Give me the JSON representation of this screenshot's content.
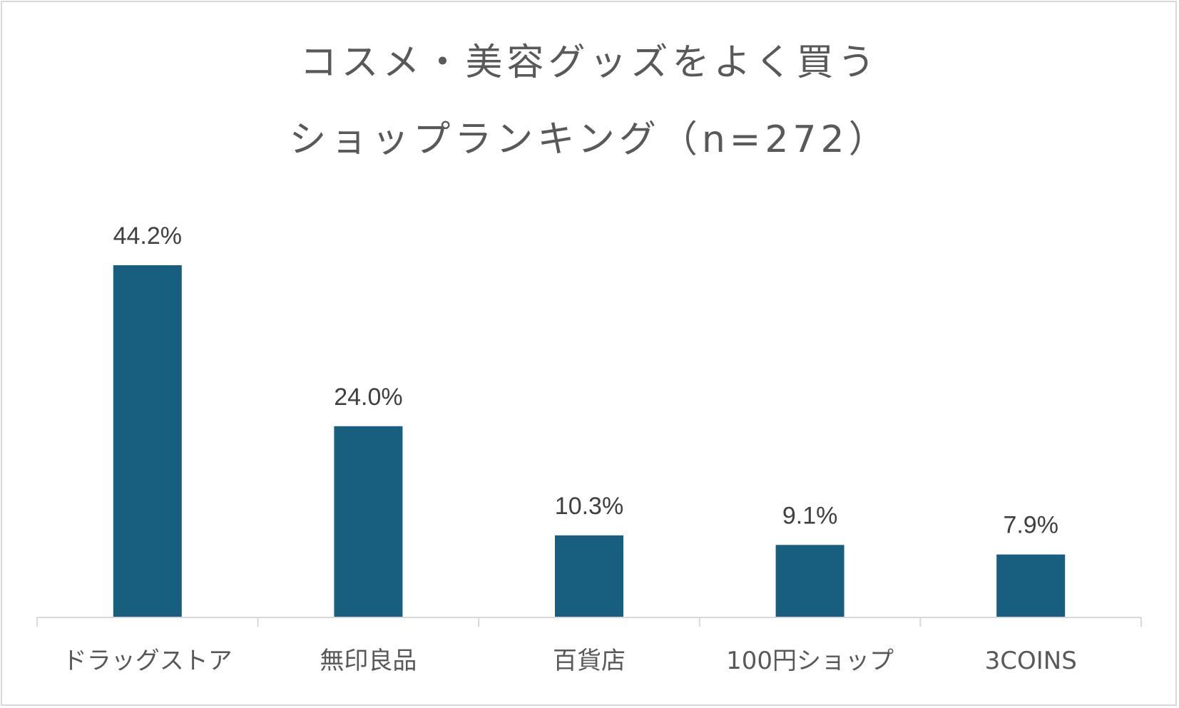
{
  "chart_title": {
    "line1": "コスメ・美容グッズをよく買う",
    "line2": "ショップランキング（n=272）"
  },
  "chart_data": {
    "type": "bar",
    "title": "コスメ・美容グッズをよく買う ショップランキング（n=272）",
    "categories": [
      "ドラッグストア",
      "無印良品",
      "百貨店",
      "100円ショップ",
      "3COINS"
    ],
    "values": [
      44.2,
      24.0,
      10.3,
      9.1,
      7.9
    ],
    "value_labels": [
      "44.2%",
      "24.0%",
      "10.3%",
      "9.1%",
      "7.9%"
    ],
    "unit": "%",
    "ylim": [
      0,
      44.2
    ],
    "grid": false,
    "legend": "none",
    "bar_color": "#175e7f"
  },
  "colors": {
    "bar": "#175e7f",
    "title_text": "#595959",
    "label_text": "#404040",
    "axis": "#d9d9d9"
  }
}
